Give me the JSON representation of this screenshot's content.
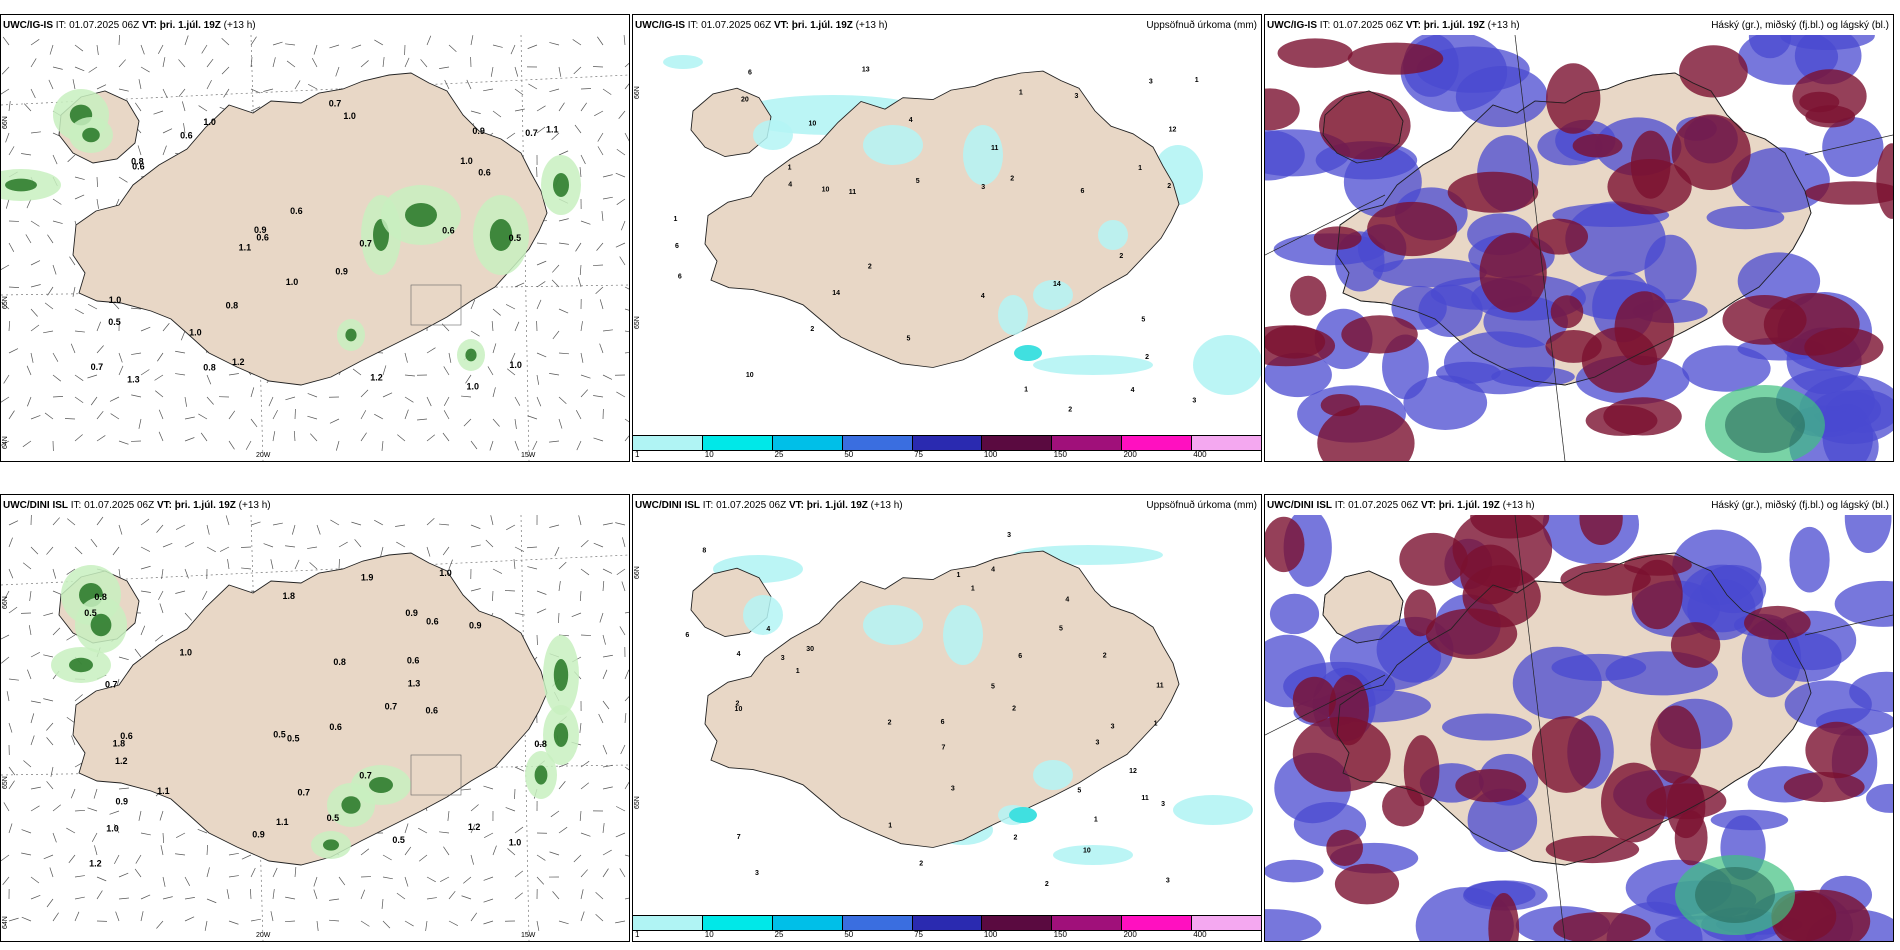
{
  "rows": [
    {
      "model": "UWC/IG-IS",
      "issue_label": "IT:",
      "issue_time": "01.07.2025 06Z",
      "valid_label": "VT:",
      "valid_time": "þri. 1.júl. 19Z",
      "lead": "(+13 h)",
      "precip_title": "Uppsöfnuð úrkoma (mm)",
      "cloud_title": "Háský (gr.), miðský (fj.bl.) og lágský (bl.)",
      "wind_labels": [
        "0.6",
        "0.5",
        "0.6",
        "1.0",
        "0.5",
        "0.6",
        "0.7",
        "0.8",
        "0.8",
        "0.7",
        "1.0",
        "1.0",
        "0.8",
        "1.1",
        "1.2",
        "1.0",
        "1.3",
        "0.6",
        "0.7",
        "1.2",
        "1.0",
        "0.9",
        "0.6",
        "0.6",
        "1.0",
        "1.0",
        "1.0",
        "0.7",
        "1.1",
        "0.9",
        "0.9"
      ],
      "precip_labels": [
        "1",
        "1",
        "1",
        "2",
        "3",
        "1",
        "2",
        "2",
        "3",
        "6",
        "5",
        "10",
        "6",
        "2",
        "10",
        "4",
        "2",
        "2",
        "4",
        "1",
        "2",
        "4",
        "6",
        "11",
        "10",
        "20",
        "14",
        "11",
        "13",
        "14",
        "12",
        "6",
        "5",
        "3",
        "4",
        "5",
        "3",
        "1"
      ]
    },
    {
      "model": "UWC/DINI ISL",
      "issue_label": "IT:",
      "issue_time": "01.07.2025 06Z",
      "valid_label": "VT:",
      "valid_time": "þri. 1.júl. 19Z",
      "lead": "(+13 h)",
      "precip_title": "Uppsöfnuð úrkoma (mm)",
      "cloud_title": "Háský (gr.), miðský (fj.bl.) og lágský (bl.)",
      "wind_labels": [
        "1.0",
        "1.0",
        "0.6",
        "0.9",
        "0.6",
        "0.6",
        "1.2",
        "0.9",
        "1.0",
        "1.1",
        "1.2",
        "0.9",
        "1.1",
        "0.5",
        "0.6",
        "1.8",
        "0.5",
        "0.5",
        "0.8",
        "1.0",
        "1.8",
        "0.7",
        "0.7",
        "0.5",
        "0.8",
        "0.7",
        "0.6",
        "1.2",
        "1.9",
        "1.3",
        "0.5",
        "0.9",
        "0.7",
        "0.8"
      ],
      "precip_labels": [
        "1",
        "1",
        "4",
        "3",
        "1",
        "3",
        "2",
        "3",
        "6",
        "5",
        "7",
        "3",
        "5",
        "2",
        "1",
        "1",
        "6",
        "3",
        "2",
        "2",
        "5",
        "2",
        "1",
        "4",
        "3",
        "3",
        "30",
        "10",
        "8",
        "11",
        "10",
        "12",
        "11",
        "4",
        "3",
        "7",
        "2",
        "2",
        "4",
        "6"
      ]
    }
  ],
  "axis": {
    "lat_labels": [
      "66N",
      "65N",
      "64N"
    ],
    "lon_labels": [
      "20W",
      "15W"
    ]
  },
  "colorbar": {
    "labels": [
      "1",
      "10",
      "25",
      "50",
      "75",
      "100",
      "150",
      "200",
      "400"
    ],
    "colors": [
      "#b0f4f4",
      "#00e8e8",
      "#00bfe8",
      "#3a6ee0",
      "#2a2ab0",
      "#5a0a40",
      "#a0107a",
      "#ff10c0",
      "#f4a8f0"
    ]
  },
  "colors": {
    "land": "#e8d7c6",
    "coast": "#222222",
    "precip_light": "#b4f4f4",
    "precip_mid": "#40e0e0",
    "wind_green_light": "#c8f0c0",
    "wind_green_dark": "#1a6e1a",
    "cloud_high": "#7a1030",
    "cloud_mid": "#4a4ad0",
    "cloud_low": "#40c080"
  }
}
